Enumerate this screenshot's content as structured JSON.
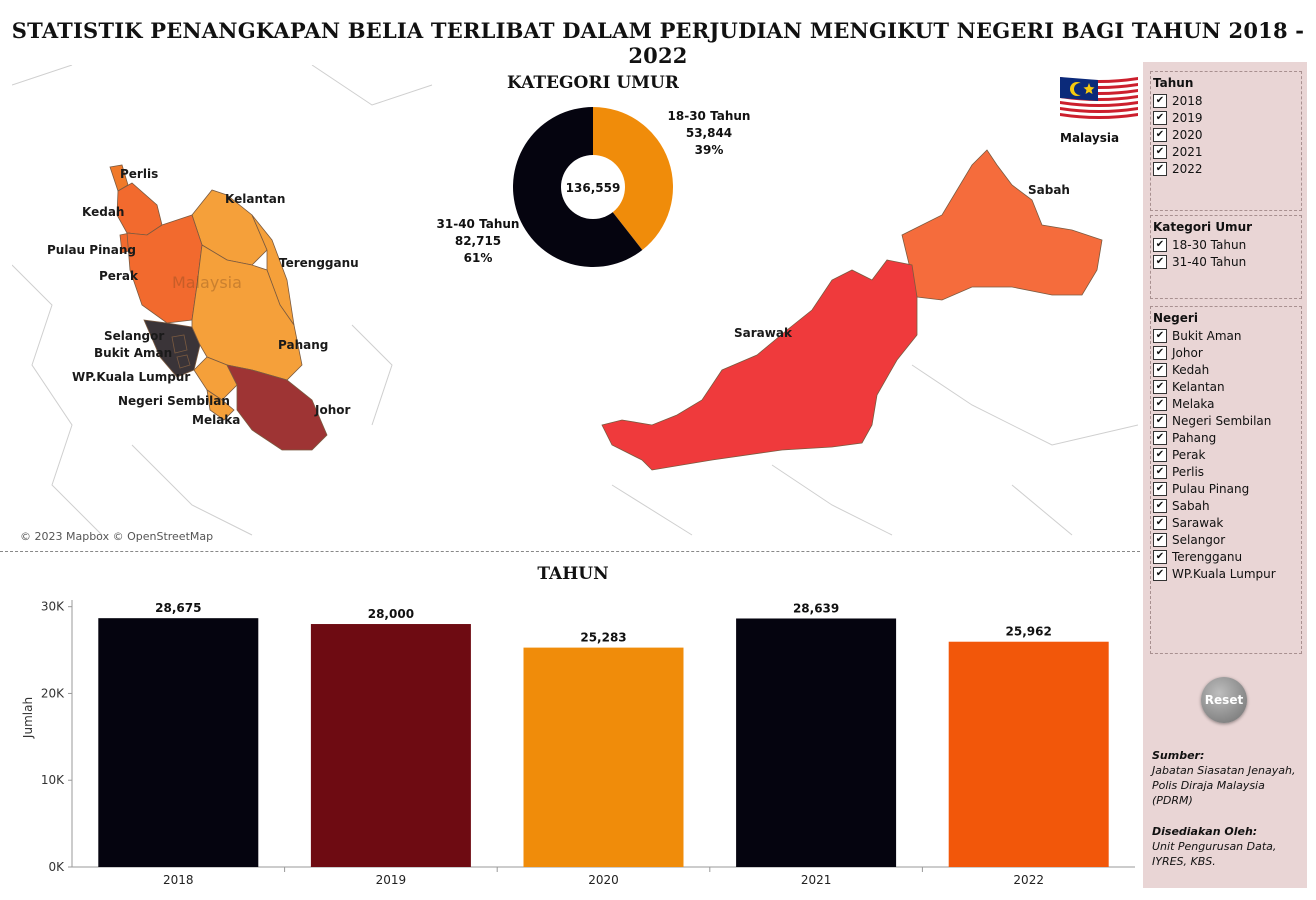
{
  "title": "STATISTIK PENANGKAPAN BELIA TERLIBAT DALAM PERJUDIAN MENGIKUT NEGERI BAGI TAHUN 2018 - 2022",
  "map": {
    "attribution": "© 2023 Mapbox © OpenStreetMap",
    "country_label": "Malaysia",
    "flag_caption": "Malaysia",
    "states": [
      {
        "name": "Perlis",
        "color": "#f07a2a"
      },
      {
        "name": "Kedah",
        "color": "#f26a2e"
      },
      {
        "name": "Kelantan",
        "color": "#f5a03a"
      },
      {
        "name": "Pulau Pinang",
        "color": "#f26a2e"
      },
      {
        "name": "Terengganu",
        "color": "#f5a03a"
      },
      {
        "name": "Perak",
        "color": "#f26a2e"
      },
      {
        "name": "Selangor",
        "color": "#3a3438"
      },
      {
        "name": "Bukit Aman",
        "color": "#3a3438"
      },
      {
        "name": "Pahang",
        "color": "#f5a03a"
      },
      {
        "name": "WP.Kuala Lumpur",
        "color": "#3a3438"
      },
      {
        "name": "Negeri Sembilan",
        "color": "#f5a03a"
      },
      {
        "name": "Johor",
        "color": "#9e3434"
      },
      {
        "name": "Melaka",
        "color": "#f5a03a"
      },
      {
        "name": "Sabah",
        "color": "#f56c3c"
      },
      {
        "name": "Sarawak",
        "color": "#ef3a3c"
      }
    ]
  },
  "donut": {
    "title": "KATEGORI UMUR",
    "total": "136,559",
    "segments": [
      {
        "label": "18-30 Tahun",
        "value": 53844,
        "value_text": "53,844",
        "pct": "39%",
        "color": "#f08c0a"
      },
      {
        "label": "31-40 Tahun",
        "value": 82715,
        "value_text": "82,715",
        "pct": "61%",
        "color": "#05040f"
      }
    ]
  },
  "chart_data": {
    "type": "bar",
    "title": "TAHUN",
    "categories": [
      "2018",
      "2019",
      "2020",
      "2021",
      "2022"
    ],
    "values": [
      28675,
      28000,
      25283,
      28639,
      25962
    ],
    "value_labels": [
      "28,675",
      "28,000",
      "25,283",
      "28,639",
      "25,962"
    ],
    "colors": [
      "#05040f",
      "#6e0b12",
      "#f08c0a",
      "#05040f",
      "#f2570a"
    ],
    "ylabel": "Jumlah",
    "xlabel": "",
    "ylim": [
      0,
      31000
    ],
    "yticks": [
      0,
      10000,
      20000,
      30000
    ],
    "ytick_labels": [
      "0K",
      "10K",
      "20K",
      "30K"
    ],
    "grid": false,
    "legend": "none"
  },
  "filters": {
    "tahun": {
      "title": "Tahun",
      "items": [
        "2018",
        "2019",
        "2020",
        "2021",
        "2022"
      ]
    },
    "kategori": {
      "title": "Kategori Umur",
      "items": [
        "18-30 Tahun",
        "31-40 Tahun"
      ]
    },
    "negeri": {
      "title": "Negeri",
      "items": [
        "Bukit Aman",
        "Johor",
        "Kedah",
        "Kelantan",
        "Melaka",
        "Negeri Sembilan",
        "Pahang",
        "Perak",
        "Perlis",
        "Pulau Pinang",
        "Sabah",
        "Sarawak",
        "Selangor",
        "Terengganu",
        "WP.Kuala Lumpur"
      ]
    }
  },
  "checkmark": "✔",
  "reset_label": "Reset",
  "source": {
    "sumber_label": "Sumber:",
    "sumber_text": "Jabatan Siasatan Jenayah, Polis Diraja Malaysia (PDRM)",
    "disediakan_label": "Disediakan Oleh:",
    "disediakan_text": "Unit Pengurusan Data, IYRES, KBS."
  }
}
